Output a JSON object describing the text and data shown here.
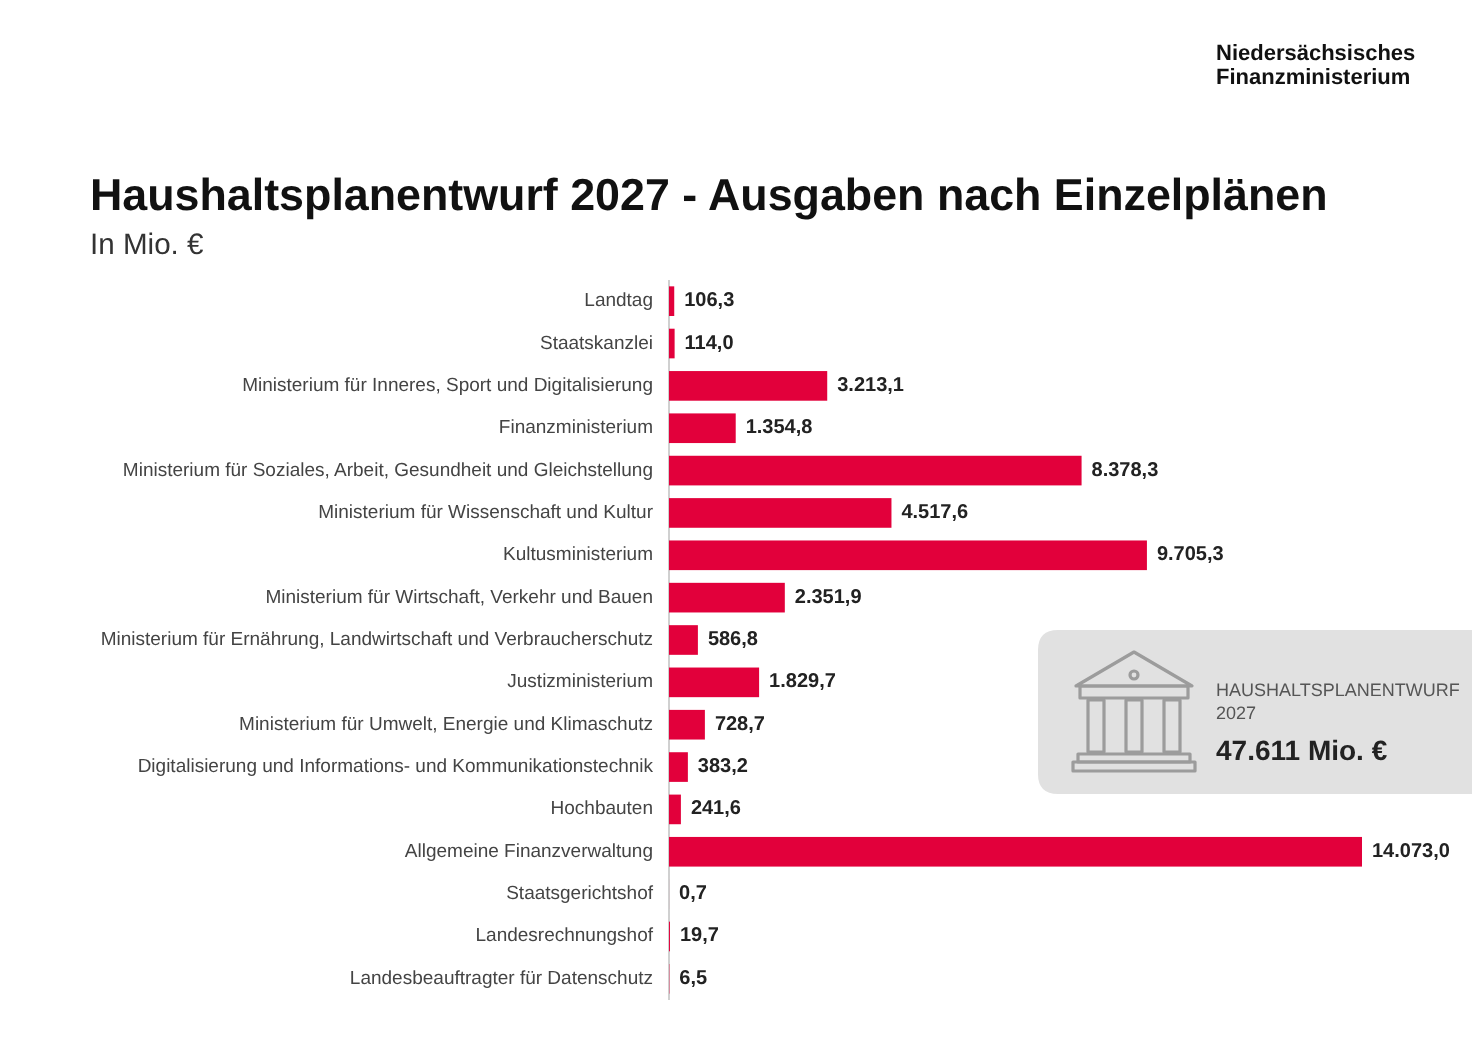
{
  "chart_data": {
    "type": "bar",
    "orientation": "horizontal",
    "title": "Haushaltsplanentwurf 2027 - Ausgaben nach Einzelplänen",
    "subtitle": "In Mio. €",
    "categories": [
      "Landtag",
      "Staatskanzlei",
      "Ministerium für Inneres, Sport und Digitalisierung",
      "Finanzministerium",
      "Ministerium für Soziales, Arbeit, Gesundheit und Gleichstellung",
      "Ministerium für Wissenschaft und Kultur",
      "Kultusministerium",
      "Ministerium für Wirtschaft, Verkehr und Bauen",
      "Ministerium für Ernährung, Landwirtschaft und Verbraucherschutz",
      "Justizministerium",
      "Ministerium für Umwelt, Energie und Klimaschutz",
      "Digitalisierung und Informations- und Kommunikationstechnik",
      "Hochbauten",
      "Allgemeine Finanzverwaltung",
      "Staatsgerichtshof",
      "Landesrechnungshof",
      "Landesbeauftragter für Datenschutz"
    ],
    "values": [
      106.3,
      114.0,
      3213.1,
      1354.8,
      8378.3,
      4517.6,
      9705.3,
      2351.9,
      586.8,
      1829.7,
      728.7,
      383.2,
      241.6,
      14073.0,
      0.7,
      19.7,
      6.5
    ],
    "value_labels": [
      "106,3",
      "114,0",
      "3.213,1",
      "1.354,8",
      "8.378,3",
      "4.517,6",
      "9.705,3",
      "2.351,9",
      "586,8",
      "1.829,7",
      "728,7",
      "383,2",
      "241,6",
      "14.073,0",
      "0,7",
      "19,7",
      "6,5"
    ],
    "color": "#e2003b",
    "annotations": [
      "Niedersächsisches Finanzministerium",
      "HAUSHALTSPLANENTWURF 2027",
      "47.611 Mio. €"
    ]
  }
}
